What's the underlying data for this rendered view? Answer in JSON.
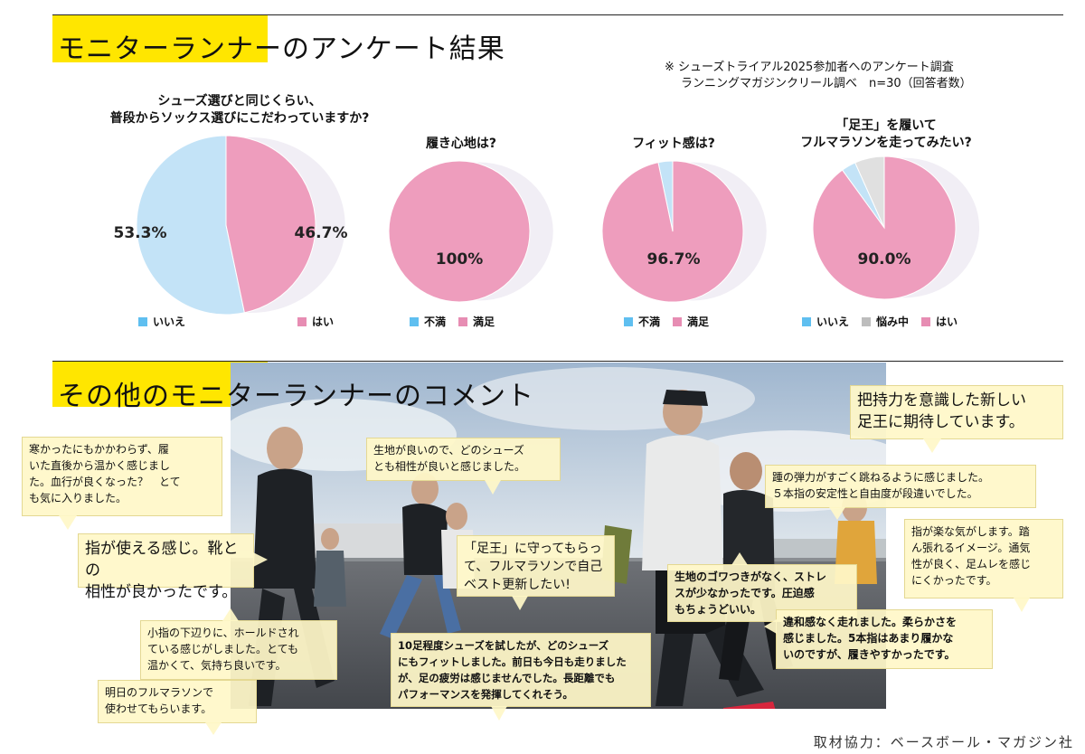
{
  "section1": {
    "title": "モニターランナーのアンケート結果"
  },
  "note": {
    "line1": "※ シューズトライアル2025参加者へのアンケート調査",
    "line2": "ランニングマガジンクリール調べ　n=30（回答者数）"
  },
  "colors": {
    "yes": "#ee9dbd",
    "no": "#c3e3f7",
    "unsure": "#e0e0e0",
    "legend_no": "#5fbff0",
    "legend_unsure": "#bdbdbd",
    "legend_yes": "#e78db3",
    "highlight": "#ffe600"
  },
  "chart_data": [
    {
      "type": "pie",
      "title_line1": "シューズ選びと同じくらい、",
      "title_line2": "普段からソックス選びにこだわっていますか?",
      "slices": [
        {
          "label": "いいえ",
          "value": 53.3,
          "value_label": "53.3%",
          "color": "#c3e3f7"
        },
        {
          "label": "はい",
          "value": 46.7,
          "value_label": "46.7%",
          "color": "#ee9dbd"
        }
      ]
    },
    {
      "type": "pie",
      "title_line1": "履き心地は?",
      "title_line2": "",
      "slices": [
        {
          "label": "不満",
          "value": 0,
          "value_label": "",
          "color": "#c3e3f7"
        },
        {
          "label": "満足",
          "value": 100,
          "value_label": "100%",
          "color": "#ee9dbd"
        }
      ]
    },
    {
      "type": "pie",
      "title_line1": "フィット感は?",
      "title_line2": "",
      "slices": [
        {
          "label": "不満",
          "value": 3.3,
          "value_label": "",
          "color": "#c3e3f7"
        },
        {
          "label": "満足",
          "value": 96.7,
          "value_label": "96.7%",
          "color": "#ee9dbd"
        }
      ]
    },
    {
      "type": "pie",
      "title_line1": "「足王」を履いて",
      "title_line2": "フルマラソンを走ってみたい?",
      "slices": [
        {
          "label": "いいえ",
          "value": 3.3,
          "value_label": "",
          "color": "#c3e3f7"
        },
        {
          "label": "悩み中",
          "value": 6.7,
          "value_label": "",
          "color": "#e0e0e0"
        },
        {
          "label": "はい",
          "value": 90.0,
          "value_label": "90.0%",
          "color": "#ee9dbd"
        }
      ]
    }
  ],
  "section2": {
    "title": "その他のモニターランナーのコメント"
  },
  "comments": {
    "c1": {
      "l1": "寒かったにもかかわらず、履",
      "l2": "いた直後から温かく感じまし",
      "l3": "た。血行が良くなった？　とて",
      "l4": "も気に入りました。"
    },
    "c2": {
      "l1": "指が使える感じ。靴との",
      "l2": "相性が良かったです。"
    },
    "c3": {
      "l1": "小指の下辺りに、ホールドされ",
      "l2": "ている感じがしました。とても",
      "l3": "温かくて、気持ち良いです。"
    },
    "c4": {
      "l1": "明日のフルマラソンで",
      "l2": "使わせてもらいます。"
    },
    "c5": {
      "l1": "生地が良いので、どのシューズ",
      "l2": "とも相性が良いと感じました。"
    },
    "c6": {
      "l1": "「足王」に守ってもらっ",
      "l2": "て、フルマラソンで自己",
      "l3": "ベスト更新したい!"
    },
    "c7": {
      "l1": "10足程度シューズを試したが、どのシューズ",
      "l2": "にもフィットしました。前日も今日も走りました",
      "l3": "が、足の疲労は感じませんでした。長距離でも",
      "l4": "パフォーマンスを発揮してくれそう。"
    },
    "c8": {
      "l1": "生地のゴワつきがなく、ストレ",
      "l2": "スが少なかったです。圧迫感",
      "l3": "もちょうどいい。"
    },
    "c9": {
      "l1": "把持力を意識した新しい",
      "l2": "足王に期待しています。"
    },
    "c10": {
      "l1": "踵の弾力がすごく跳ねるように感じました。",
      "l2": "５本指の安定性と自由度が段違いでした。"
    },
    "c11": {
      "l1": "指が楽な気がします。踏",
      "l2": "ん張れるイメージ。通気",
      "l3": "性が良く、足ムレを感じ",
      "l4": "にくかったです。"
    },
    "c12": {
      "l1": "違和感なく走れました。柔らかさを",
      "l2": "感じました。5本指はあまり履かな",
      "l3": "いのですが、履きやすかったです。"
    }
  },
  "credit": "取材協力：ベースボール・マガジン社"
}
